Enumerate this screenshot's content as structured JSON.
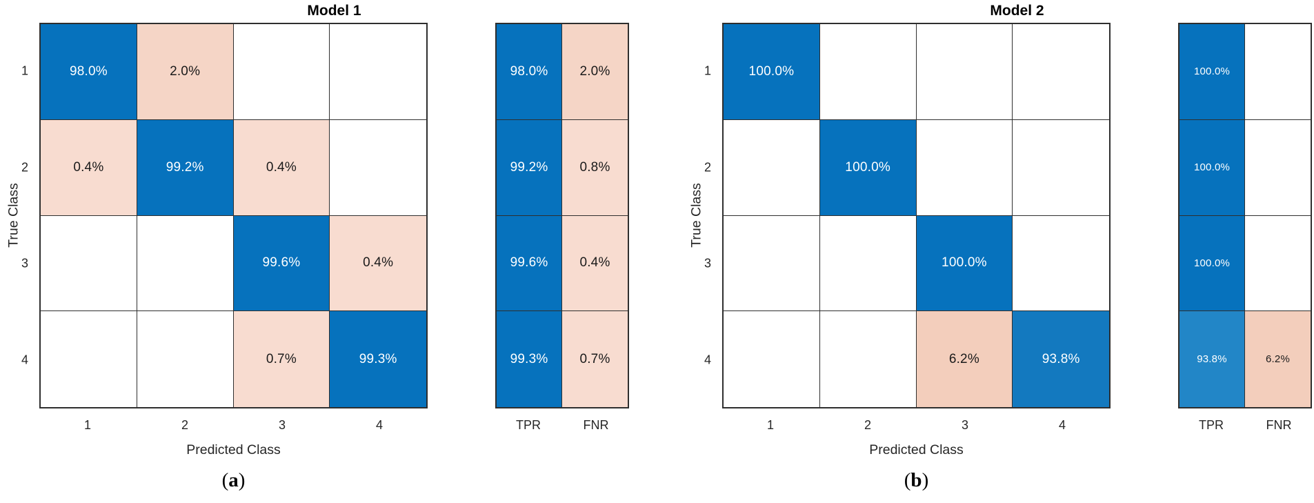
{
  "figure": {
    "palette": {
      "blue": "#0672bd",
      "blue_mid": "#1379bf",
      "blue_light": "#2286c7",
      "peach": "#f8dcd0",
      "peach_mid": "#f5d5c6",
      "peach_deep": "#f3cebc",
      "white": "#ffffff"
    },
    "panels": [
      {
        "title": "Model 1",
        "x_label": "Predicted Class",
        "y_label": "True Class",
        "caption_open": "(",
        "caption_letter": "a",
        "caption_close": ")",
        "class_labels": [
          "1",
          "2",
          "3",
          "4"
        ],
        "summary_labels": [
          "TPR",
          "FNR"
        ],
        "matrix": [
          [
            {
              "text": "98.0%",
              "fill": "blue",
              "ink": "white"
            },
            {
              "text": "2.0%",
              "fill": "peach_mid",
              "ink": "dark"
            },
            {
              "text": "",
              "fill": "white",
              "ink": "dark"
            },
            {
              "text": "",
              "fill": "white",
              "ink": "dark"
            }
          ],
          [
            {
              "text": "0.4%",
              "fill": "peach",
              "ink": "dark"
            },
            {
              "text": "99.2%",
              "fill": "blue",
              "ink": "white"
            },
            {
              "text": "0.4%",
              "fill": "peach",
              "ink": "dark"
            },
            {
              "text": "",
              "fill": "white",
              "ink": "dark"
            }
          ],
          [
            {
              "text": "",
              "fill": "white",
              "ink": "dark"
            },
            {
              "text": "",
              "fill": "white",
              "ink": "dark"
            },
            {
              "text": "99.6%",
              "fill": "blue",
              "ink": "white"
            },
            {
              "text": "0.4%",
              "fill": "peach",
              "ink": "dark"
            }
          ],
          [
            {
              "text": "",
              "fill": "white",
              "ink": "dark"
            },
            {
              "text": "",
              "fill": "white",
              "ink": "dark"
            },
            {
              "text": "0.7%",
              "fill": "peach",
              "ink": "dark"
            },
            {
              "text": "99.3%",
              "fill": "blue",
              "ink": "white"
            }
          ]
        ],
        "summary": [
          [
            {
              "text": "98.0%",
              "fill": "blue",
              "ink": "white"
            },
            {
              "text": "2.0%",
              "fill": "peach_mid",
              "ink": "dark"
            }
          ],
          [
            {
              "text": "99.2%",
              "fill": "blue",
              "ink": "white"
            },
            {
              "text": "0.8%",
              "fill": "peach",
              "ink": "dark"
            }
          ],
          [
            {
              "text": "99.6%",
              "fill": "blue",
              "ink": "white"
            },
            {
              "text": "0.4%",
              "fill": "peach",
              "ink": "dark"
            }
          ],
          [
            {
              "text": "99.3%",
              "fill": "blue",
              "ink": "white"
            },
            {
              "text": "0.7%",
              "fill": "peach",
              "ink": "dark"
            }
          ]
        ]
      },
      {
        "title": "Model 2",
        "x_label": "Predicted Class",
        "y_label": "True Class",
        "caption_open": "(",
        "caption_letter": "b",
        "caption_close": ")",
        "class_labels": [
          "1",
          "2",
          "3",
          "4"
        ],
        "summary_labels": [
          "TPR",
          "FNR"
        ],
        "matrix": [
          [
            {
              "text": "100.0%",
              "fill": "blue",
              "ink": "white"
            },
            {
              "text": "",
              "fill": "white",
              "ink": "dark"
            },
            {
              "text": "",
              "fill": "white",
              "ink": "dark"
            },
            {
              "text": "",
              "fill": "white",
              "ink": "dark"
            }
          ],
          [
            {
              "text": "",
              "fill": "white",
              "ink": "dark"
            },
            {
              "text": "100.0%",
              "fill": "blue",
              "ink": "white"
            },
            {
              "text": "",
              "fill": "white",
              "ink": "dark"
            },
            {
              "text": "",
              "fill": "white",
              "ink": "dark"
            }
          ],
          [
            {
              "text": "",
              "fill": "white",
              "ink": "dark"
            },
            {
              "text": "",
              "fill": "white",
              "ink": "dark"
            },
            {
              "text": "100.0%",
              "fill": "blue",
              "ink": "white"
            },
            {
              "text": "",
              "fill": "white",
              "ink": "dark"
            }
          ],
          [
            {
              "text": "",
              "fill": "white",
              "ink": "dark"
            },
            {
              "text": "",
              "fill": "white",
              "ink": "dark"
            },
            {
              "text": "6.2%",
              "fill": "peach_deep",
              "ink": "dark"
            },
            {
              "text": "93.8%",
              "fill": "blue_mid",
              "ink": "white"
            }
          ]
        ],
        "summary": [
          [
            {
              "text": "100.0%",
              "fill": "blue",
              "ink": "white"
            },
            {
              "text": "",
              "fill": "white",
              "ink": "dark"
            }
          ],
          [
            {
              "text": "100.0%",
              "fill": "blue",
              "ink": "white"
            },
            {
              "text": "",
              "fill": "white",
              "ink": "dark"
            }
          ],
          [
            {
              "text": "100.0%",
              "fill": "blue",
              "ink": "white"
            },
            {
              "text": "",
              "fill": "white",
              "ink": "dark"
            }
          ],
          [
            {
              "text": "93.8%",
              "fill": "blue_light",
              "ink": "white"
            },
            {
              "text": "6.2%",
              "fill": "peach_deep",
              "ink": "dark"
            }
          ]
        ]
      }
    ]
  },
  "chart_data": [
    {
      "type": "heatmap",
      "subtype": "confusion-matrix",
      "title": "Model 1",
      "xlabel": "Predicted Class",
      "ylabel": "True Class",
      "x_categories": [
        "1",
        "2",
        "3",
        "4"
      ],
      "y_categories": [
        "1",
        "2",
        "3",
        "4"
      ],
      "values_percent": [
        [
          98.0,
          2.0,
          null,
          null
        ],
        [
          0.4,
          99.2,
          0.4,
          null
        ],
        [
          null,
          null,
          99.6,
          0.4
        ],
        [
          null,
          null,
          0.7,
          99.3
        ]
      ],
      "row_summary": {
        "columns": [
          "TPR",
          "FNR"
        ],
        "TPR": [
          98.0,
          99.2,
          99.6,
          99.3
        ],
        "FNR": [
          2.0,
          0.8,
          0.4,
          0.7
        ]
      },
      "caption": "(a)",
      "grid": true,
      "legend": false
    },
    {
      "type": "heatmap",
      "subtype": "confusion-matrix",
      "title": "Model 2",
      "xlabel": "Predicted Class",
      "ylabel": "True Class",
      "x_categories": [
        "1",
        "2",
        "3",
        "4"
      ],
      "y_categories": [
        "1",
        "2",
        "3",
        "4"
      ],
      "values_percent": [
        [
          100.0,
          null,
          null,
          null
        ],
        [
          null,
          100.0,
          null,
          null
        ],
        [
          null,
          null,
          100.0,
          null
        ],
        [
          null,
          null,
          6.2,
          93.8
        ]
      ],
      "row_summary": {
        "columns": [
          "TPR",
          "FNR"
        ],
        "TPR": [
          100.0,
          100.0,
          100.0,
          93.8
        ],
        "FNR": [
          null,
          null,
          null,
          6.2
        ]
      },
      "caption": "(b)",
      "grid": true,
      "legend": false
    }
  ]
}
